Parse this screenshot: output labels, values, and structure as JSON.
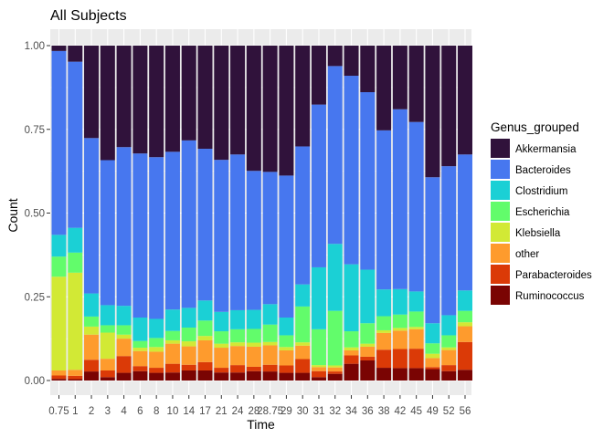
{
  "chart_data": {
    "type": "bar",
    "stacked": true,
    "title": "All Subjects",
    "xlabel": "Time",
    "ylabel": "Count",
    "ylim": [
      0,
      1
    ],
    "y_ticks": [
      "0.00",
      "0.25",
      "0.50",
      "0.75",
      "1.00"
    ],
    "grid": true,
    "legend_title": "Genus_grouped",
    "legend_position": "right",
    "categories": [
      "0.75",
      "1",
      "2",
      "3",
      "4",
      "6",
      "8",
      "10",
      "14",
      "17",
      "21",
      "24",
      "28",
      "28.75",
      "29",
      "30",
      "31",
      "32",
      "34",
      "36",
      "38",
      "42",
      "45",
      "49",
      "52",
      "56"
    ],
    "series": [
      {
        "name": "Akkermansia",
        "color": "#30123b",
        "values": [
          0.016,
          0.048,
          0.276,
          0.342,
          0.303,
          0.322,
          0.333,
          0.317,
          0.283,
          0.308,
          0.341,
          0.325,
          0.374,
          0.377,
          0.388,
          0.301,
          0.176,
          0.061,
          0.09,
          0.139,
          0.253,
          0.19,
          0.228,
          0.393,
          0.36,
          0.325
        ]
      },
      {
        "name": "Bacteroides",
        "color": "#4777ef",
        "values": [
          0.549,
          0.496,
          0.464,
          0.433,
          0.474,
          0.49,
          0.483,
          0.471,
          0.5,
          0.453,
          0.454,
          0.465,
          0.415,
          0.395,
          0.424,
          0.412,
          0.486,
          0.531,
          0.563,
          0.53,
          0.475,
          0.537,
          0.506,
          0.436,
          0.445,
          0.406
        ]
      },
      {
        "name": "Clostridium",
        "color": "#1bd0d5",
        "values": [
          0.065,
          0.074,
          0.069,
          0.06,
          0.058,
          0.07,
          0.057,
          0.064,
          0.059,
          0.06,
          0.058,
          0.057,
          0.057,
          0.061,
          0.053,
          0.066,
          0.185,
          0.2,
          0.2,
          0.16,
          0.08,
          0.076,
          0.06,
          0.06,
          0.06,
          0.061
        ]
      },
      {
        "name": "Escherichia",
        "color": "#62fc6b",
        "values": [
          0.06,
          0.06,
          0.03,
          0.022,
          0.028,
          0.02,
          0.027,
          0.028,
          0.041,
          0.046,
          0.037,
          0.039,
          0.041,
          0.052,
          0.035,
          0.107,
          0.107,
          0.163,
          0.048,
          0.061,
          0.042,
          0.04,
          0.046,
          0.031,
          0.036,
          0.034
        ]
      },
      {
        "name": "Klebsiella",
        "color": "#d2e935",
        "values": [
          0.28,
          0.29,
          0.024,
          0.078,
          0.012,
          0.01,
          0.014,
          0.01,
          0.015,
          0.013,
          0.012,
          0.011,
          0.012,
          0.01,
          0.01,
          0.01,
          0.006,
          0.006,
          0.009,
          0.009,
          0.008,
          0.008,
          0.007,
          0.013,
          0.008,
          0.012
        ]
      },
      {
        "name": "other",
        "color": "#fe9b2d",
        "values": [
          0.015,
          0.018,
          0.075,
          0.035,
          0.052,
          0.045,
          0.048,
          0.06,
          0.055,
          0.065,
          0.06,
          0.057,
          0.06,
          0.058,
          0.045,
          0.04,
          0.012,
          0.012,
          0.015,
          0.03,
          0.05,
          0.055,
          0.058,
          0.027,
          0.045,
          0.047
        ]
      },
      {
        "name": "Parabacteroides",
        "color": "#db3a07",
        "values": [
          0.01,
          0.01,
          0.035,
          0.02,
          0.05,
          0.015,
          0.015,
          0.026,
          0.017,
          0.025,
          0.014,
          0.022,
          0.013,
          0.02,
          0.022,
          0.041,
          0.018,
          0.007,
          0.025,
          0.011,
          0.054,
          0.057,
          0.058,
          0.006,
          0.018,
          0.083
        ]
      },
      {
        "name": "Ruminococcus",
        "color": "#7a0403",
        "values": [
          0.005,
          0.004,
          0.027,
          0.01,
          0.023,
          0.028,
          0.023,
          0.024,
          0.03,
          0.03,
          0.024,
          0.024,
          0.028,
          0.027,
          0.023,
          0.023,
          0.01,
          0.02,
          0.05,
          0.06,
          0.038,
          0.037,
          0.037,
          0.034,
          0.028,
          0.032
        ]
      }
    ]
  }
}
